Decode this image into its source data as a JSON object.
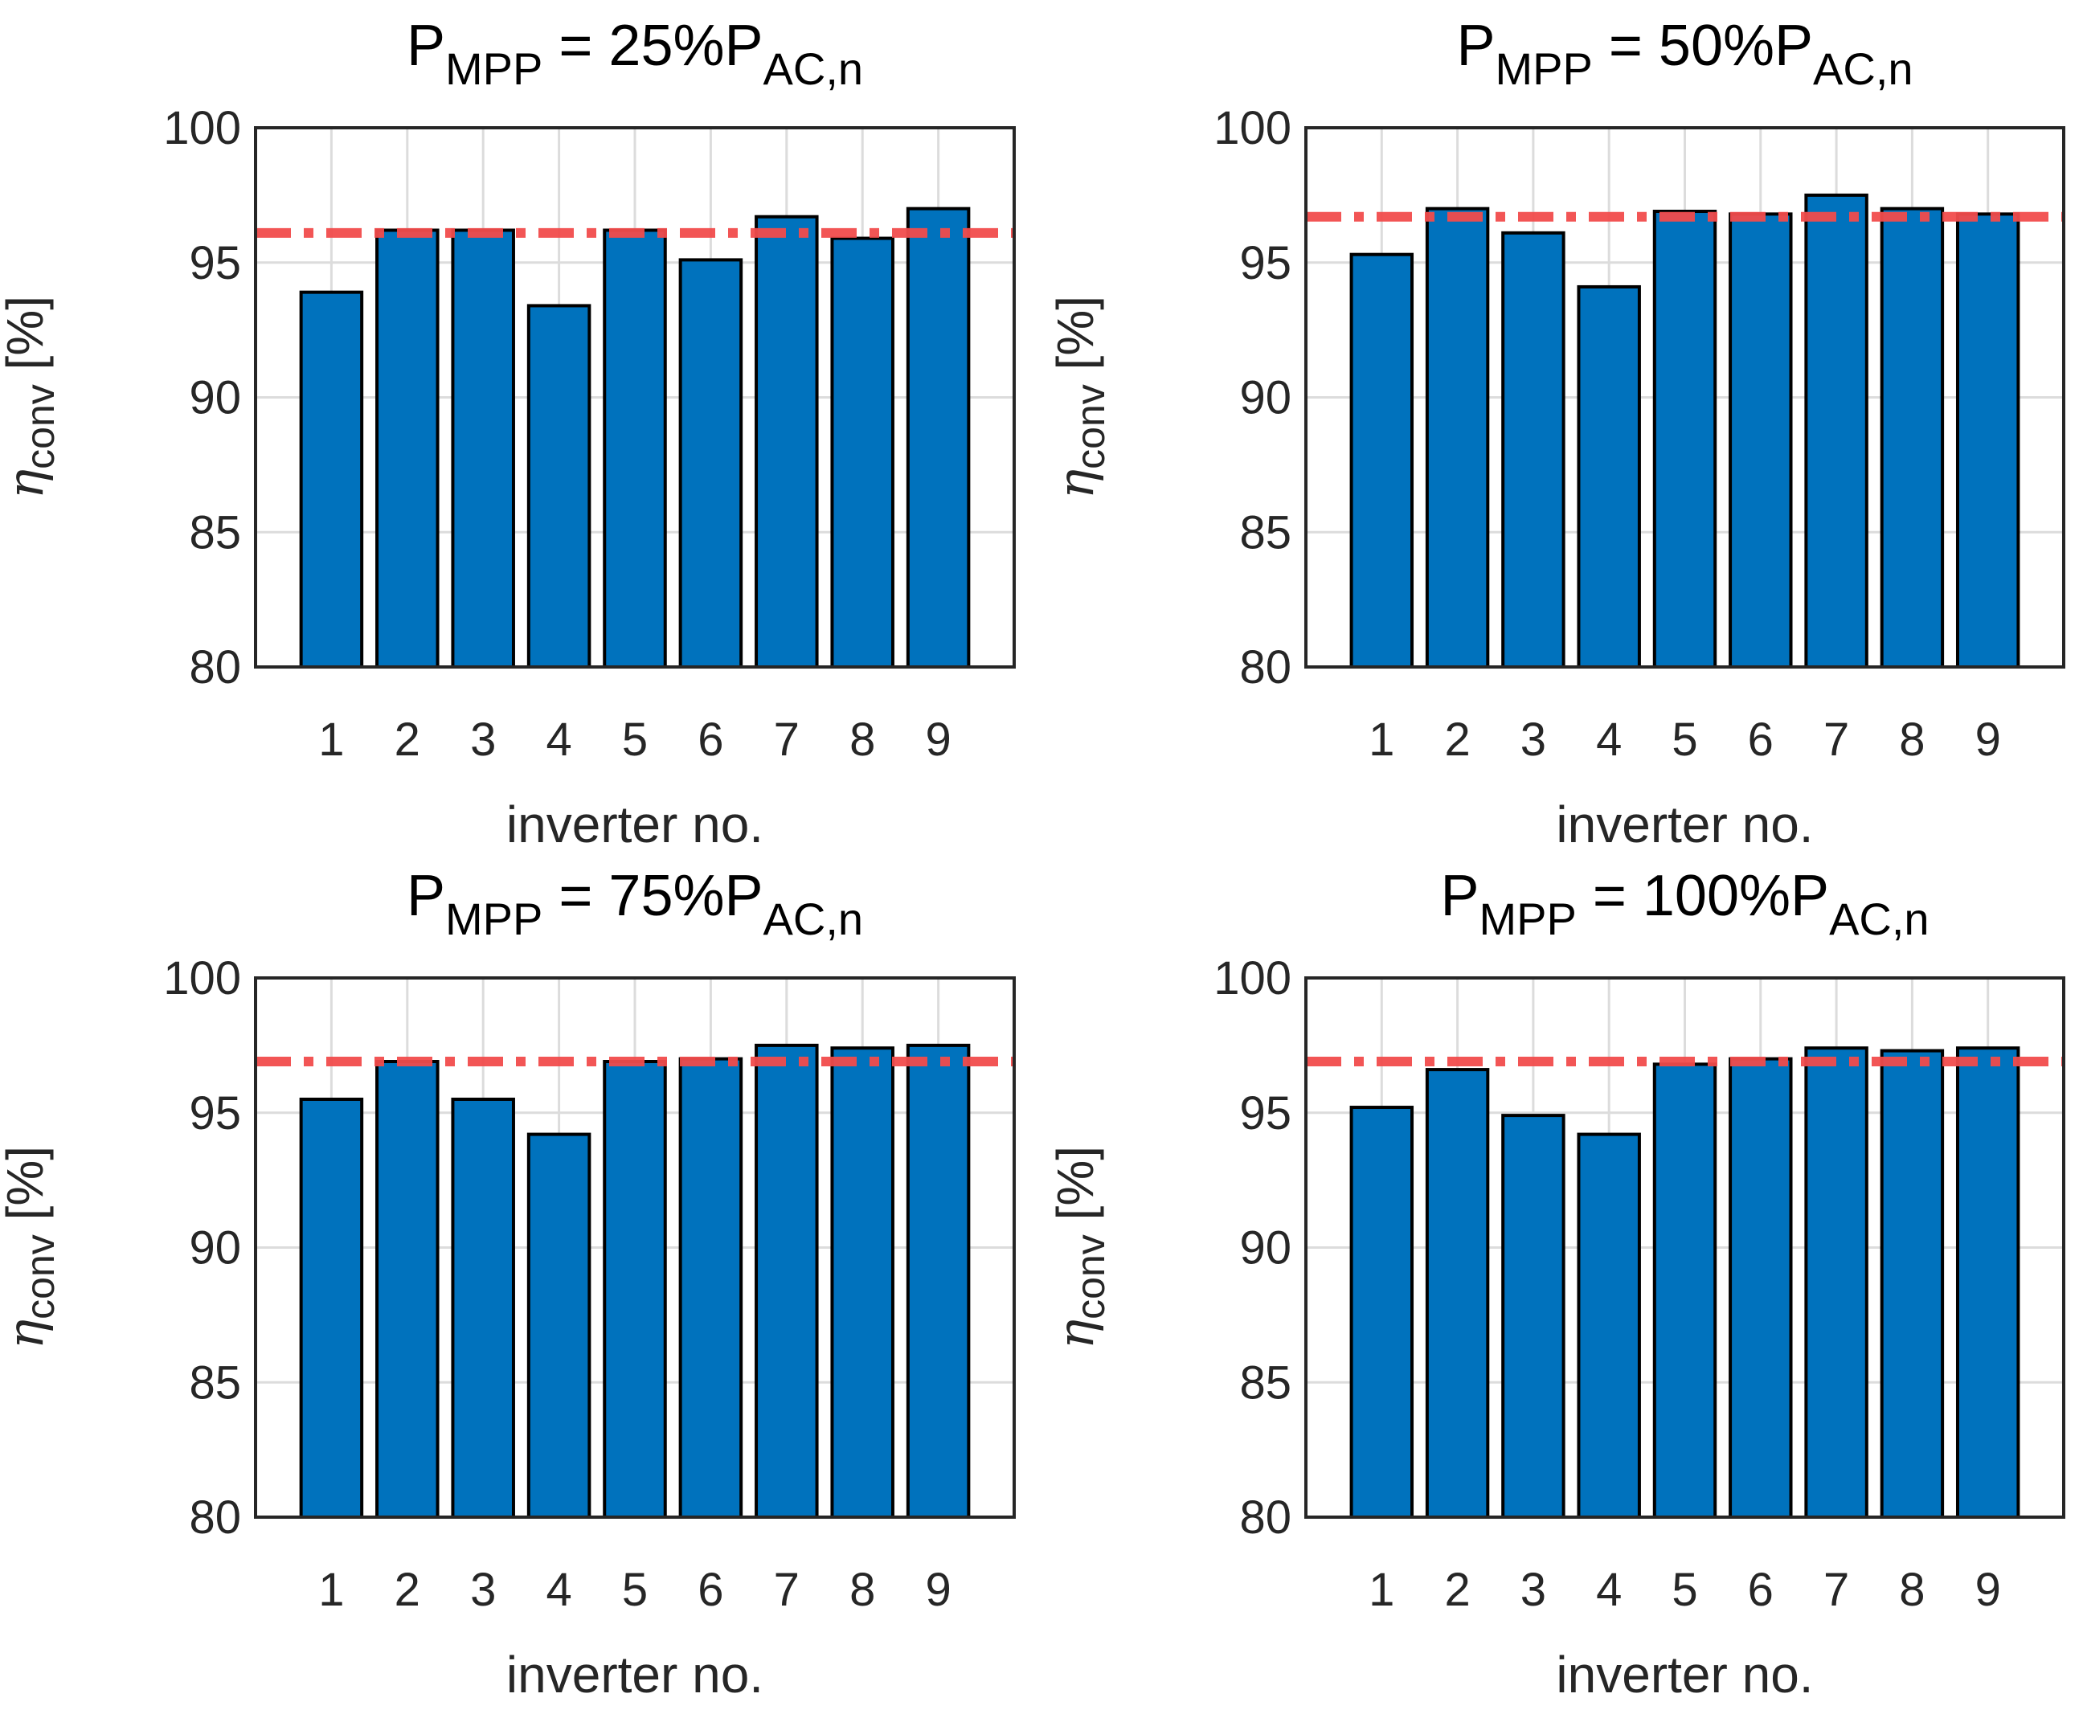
{
  "chart_data": [
    {
      "type": "bar",
      "title": {
        "main": "P",
        "sub": "MPP",
        "mid": " = 25%P",
        "sub2": "AC,n"
      },
      "categories": [
        "1",
        "2",
        "3",
        "4",
        "5",
        "6",
        "7",
        "8",
        "9"
      ],
      "values": [
        93.9,
        96.2,
        96.2,
        93.4,
        96.2,
        95.1,
        96.7,
        95.9,
        97.0
      ],
      "reference": 96.1,
      "xlabel": "inverter no.",
      "ylabel": {
        "symbol": "η",
        "sub": "conv",
        "unit": "[%]"
      },
      "ylim": [
        80,
        100
      ],
      "yticks": [
        "80",
        "85",
        "90",
        "95",
        "100"
      ],
      "grid": true
    },
    {
      "type": "bar",
      "title": {
        "main": "P",
        "sub": "MPP",
        "mid": " = 50%P",
        "sub2": "AC,n"
      },
      "categories": [
        "1",
        "2",
        "3",
        "4",
        "5",
        "6",
        "7",
        "8",
        "9"
      ],
      "values": [
        95.3,
        97.0,
        96.1,
        94.1,
        96.9,
        96.8,
        97.5,
        97.0,
        96.8
      ],
      "reference": 96.7,
      "xlabel": "inverter no.",
      "ylabel": {
        "symbol": "η",
        "sub": "conv",
        "unit": "[%]"
      },
      "ylim": [
        80,
        100
      ],
      "yticks": [
        "80",
        "85",
        "90",
        "95",
        "100"
      ],
      "grid": true
    },
    {
      "type": "bar",
      "title": {
        "main": "P",
        "sub": "MPP",
        "mid": " = 75%P",
        "sub2": "AC,n"
      },
      "categories": [
        "1",
        "2",
        "3",
        "4",
        "5",
        "6",
        "7",
        "8",
        "9"
      ],
      "values": [
        95.5,
        96.9,
        95.5,
        94.2,
        96.9,
        97.0,
        97.5,
        97.4,
        97.5
      ],
      "reference": 96.9,
      "xlabel": "inverter no.",
      "ylabel": {
        "symbol": "η",
        "sub": "conv",
        "unit": "[%]"
      },
      "ylim": [
        80,
        100
      ],
      "yticks": [
        "80",
        "85",
        "90",
        "95",
        "100"
      ],
      "grid": true
    },
    {
      "type": "bar",
      "title": {
        "main": "P",
        "sub": "MPP",
        "mid": " = 100%P",
        "sub2": "AC,n"
      },
      "categories": [
        "1",
        "2",
        "3",
        "4",
        "5",
        "6",
        "7",
        "8",
        "9"
      ],
      "values": [
        95.2,
        96.6,
        94.9,
        94.2,
        96.8,
        97.0,
        97.4,
        97.3,
        97.4
      ],
      "reference": 96.9,
      "xlabel": "inverter no.",
      "ylabel": {
        "symbol": "η",
        "sub": "conv",
        "unit": "[%]"
      },
      "ylim": [
        80,
        100
      ],
      "yticks": [
        "80",
        "85",
        "90",
        "95",
        "100"
      ],
      "grid": true
    }
  ],
  "colors": {
    "bar": "#0072bd",
    "bar_edge": "#000000",
    "reference": "#f24c4c",
    "grid": "#dcdcdc",
    "axis": "#262626"
  }
}
